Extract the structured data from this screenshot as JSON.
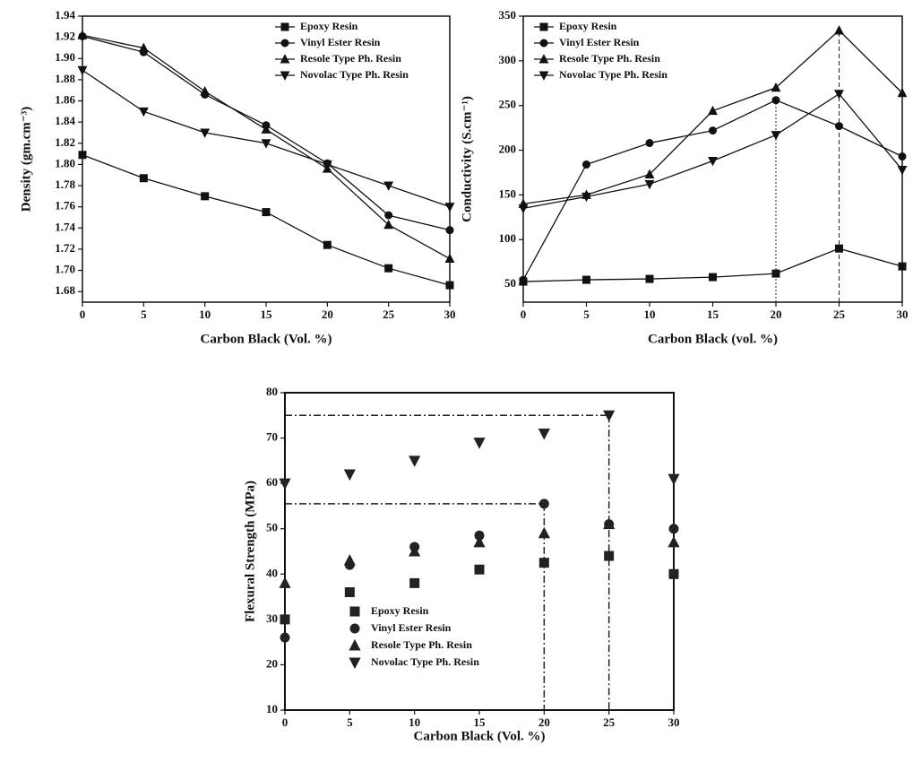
{
  "chart_data": [
    {
      "type": "line",
      "x": [
        0,
        5,
        10,
        15,
        20,
        25,
        30
      ],
      "x_label": "Carbon Black (Vol. %)",
      "y_label": "Density (gm.cm⁻³)",
      "xlim": [
        0,
        30
      ],
      "xticks": [
        0,
        5,
        10,
        15,
        20,
        25,
        30
      ],
      "ylim": [
        1.67,
        1.94
      ],
      "yticks": [
        1.68,
        {
          "value": 1.7,
          "label": "1.70"
        },
        1.72,
        1.74,
        1.76,
        1.78,
        {
          "value": 1.8,
          "label": "1.80"
        },
        1.82,
        1.84,
        1.86,
        1.88,
        {
          "value": 1.9,
          "label": "1.90"
        },
        1.92,
        1.94
      ],
      "legend": "upper right",
      "series": [
        {
          "name": "Epoxy Resin",
          "color": "#111111",
          "marker": "square",
          "values": [
            1.809,
            1.787,
            1.77,
            1.755,
            1.724,
            1.702,
            1.686
          ]
        },
        {
          "name": "Vinyl Ester Resin",
          "color": "#111111",
          "marker": "circle",
          "values": [
            1.921,
            1.906,
            1.866,
            1.837,
            1.801,
            1.752,
            1.738
          ]
        },
        {
          "name": "Resole Type Ph. Resin",
          "color": "#111111",
          "marker": "triangle-up",
          "values": [
            1.922,
            1.91,
            1.869,
            1.833,
            1.796,
            1.743,
            1.711
          ]
        },
        {
          "name": "Novolac Type Ph. Resin",
          "color": "#111111",
          "marker": "triangle-down",
          "values": [
            1.889,
            1.85,
            1.83,
            1.82,
            1.8,
            1.78,
            1.76
          ]
        }
      ]
    },
    {
      "type": "line",
      "x": [
        0,
        5,
        10,
        15,
        20,
        25,
        30
      ],
      "x_label": "Carbon Black (vol. %)",
      "y_label": "Conductivity (S.cm⁻¹)",
      "xlim": [
        0,
        30
      ],
      "xticks": [
        0,
        5,
        10,
        15,
        20,
        25,
        30
      ],
      "ylim": [
        30,
        350
      ],
      "yticks": [
        50,
        100,
        150,
        200,
        250,
        300,
        350
      ],
      "legend": "upper left",
      "guides": [
        {
          "kind": "vertical",
          "x": 20,
          "y": 256
        },
        {
          "kind": "vertical",
          "x": 25,
          "y": 334
        }
      ],
      "series": [
        {
          "name": "Epoxy Resin",
          "color": "#111111",
          "marker": "square",
          "values": [
            53,
            55,
            56,
            58,
            62,
            90,
            70
          ]
        },
        {
          "name": "Vinyl Ester Resin",
          "color": "#111111",
          "marker": "circle",
          "values": [
            55,
            184,
            208,
            222,
            256,
            227,
            193
          ]
        },
        {
          "name": "Resole Type Ph. Resin",
          "color": "#111111",
          "marker": "triangle-up",
          "values": [
            140,
            150,
            173,
            244,
            270,
            334,
            264
          ]
        },
        {
          "name": "Novolac Type Ph. Resin",
          "color": "#111111",
          "marker": "triangle-down",
          "values": [
            135,
            148,
            162,
            188,
            217,
            263,
            178
          ]
        }
      ]
    },
    {
      "type": "scatter",
      "x": [
        0,
        5,
        10,
        15,
        20,
        25,
        30
      ],
      "x_label": "Carbon Black (Vol. %)",
      "y_label": "Flexural Strength (MPa)",
      "xlim": [
        0,
        30
      ],
      "xticks": [
        0,
        5,
        10,
        15,
        20,
        25,
        30
      ],
      "ylim": [
        10,
        80
      ],
      "yticks": [
        10,
        20,
        30,
        40,
        50,
        60,
        70,
        80
      ],
      "legend": "lower left",
      "guides": [
        {
          "kind": "cross",
          "x": 25,
          "y": 75
        },
        {
          "kind": "cross",
          "x": 20,
          "y": 55.5
        }
      ],
      "series": [
        {
          "name": "Epoxy Resin",
          "color": "#222222",
          "marker": "square",
          "values": [
            30,
            36,
            38,
            41,
            42.5,
            44,
            40
          ]
        },
        {
          "name": "Vinyl Ester Resin",
          "color": "#222222",
          "marker": "circle",
          "values": [
            26,
            42,
            46,
            48.5,
            55.5,
            51,
            50
          ]
        },
        {
          "name": "Resole Type Ph. Resin",
          "color": "#222222",
          "marker": "triangle-up",
          "values": [
            38,
            43,
            45,
            47,
            49,
            51,
            47
          ]
        },
        {
          "name": "Novolac Type Ph. Resin",
          "color": "#222222",
          "marker": "triangle-down",
          "values": [
            60,
            62,
            65,
            69,
            71,
            75,
            61
          ]
        }
      ]
    }
  ]
}
